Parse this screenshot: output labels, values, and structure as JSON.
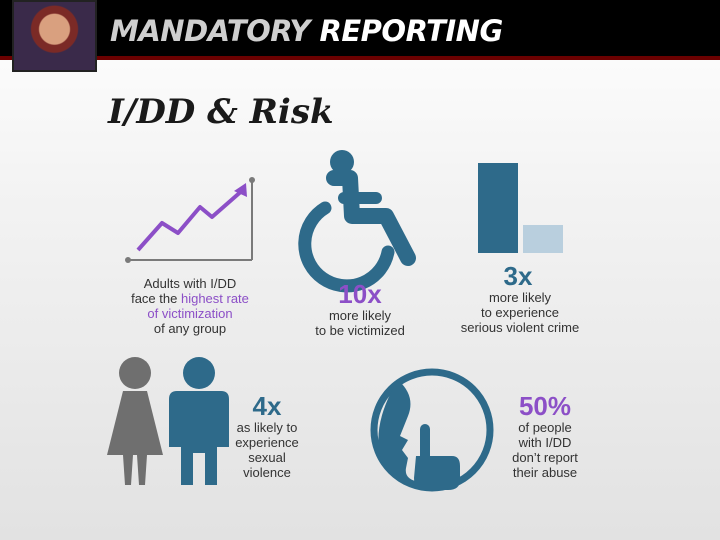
{
  "header": {
    "title_word1": "MANDATORY",
    "title_word2": "REPORTING"
  },
  "slide": {
    "title": "I/DD & Risk"
  },
  "stats": {
    "victimization": {
      "line1": "Adults with I/DD",
      "line2_prefix": "face the ",
      "line2_accent": "highest rate",
      "line3_accent": "of victimization",
      "line4": "of any group"
    },
    "victimized": {
      "multiplier": "10x",
      "line1": "more likely",
      "line2": "to be victimized"
    },
    "violent_crime": {
      "multiplier": "3x",
      "line1": "more likely",
      "line2": "to experience",
      "line3": "serious violent crime"
    },
    "sexual_violence": {
      "multiplier": "4x",
      "line1": "as likely to",
      "line2": "experience",
      "line3": "sexual",
      "line4": "violence"
    },
    "not_reported": {
      "percent": "50%",
      "line1": "of people",
      "line2": "with I/DD",
      "line3": "don’t report",
      "line4": "their abuse"
    }
  },
  "icons": [
    "presenter-photo",
    "line-chart-icon",
    "wheelchair-icon",
    "bar-chart-icon",
    "people-icon",
    "silence-icon"
  ],
  "colors": {
    "purple": "#8c4fc7",
    "blue": "#2e6a8a",
    "light_blue": "#b9cfde",
    "gray": "#6f6f6f",
    "header_bg": "#000000",
    "header_rule": "#6b0000"
  }
}
